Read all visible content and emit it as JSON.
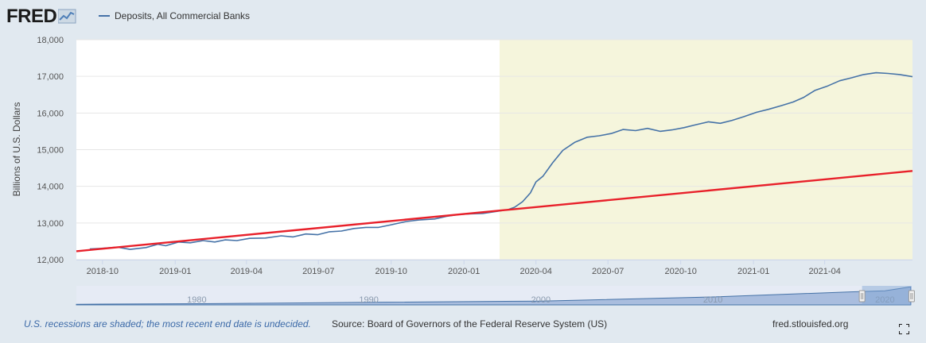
{
  "brand": "FRED",
  "legend": {
    "series_label": "Deposits, All Commercial Banks",
    "series_color": "#4572a7",
    "trend_color": "#e8202a"
  },
  "footer": {
    "recession_note": "U.S. recessions are shaded; the most recent end date is undecided.",
    "source": "Source: Board of Governors of the Federal Reserve System (US)",
    "site": "fred.stlouisfed.org"
  },
  "chart_data": {
    "type": "line",
    "ylabel": "Billions of U.S. Dollars",
    "ylim": [
      12000,
      18000
    ],
    "yticks": [
      12000,
      13000,
      14000,
      15000,
      16000,
      17000,
      18000
    ],
    "ytick_labels": [
      "12,000",
      "13,000",
      "14,000",
      "15,000",
      "16,000",
      "17,000",
      "18,000"
    ],
    "xlim": [
      "2018-08-29",
      "2021-07-21"
    ],
    "xticks": [
      {
        "date": "2018-10-01",
        "label": "2018-10"
      },
      {
        "date": "2019-01-01",
        "label": "2019-01"
      },
      {
        "date": "2019-04-01",
        "label": "2019-04"
      },
      {
        "date": "2019-07-01",
        "label": "2019-07"
      },
      {
        "date": "2019-10-01",
        "label": "2019-10"
      },
      {
        "date": "2020-01-01",
        "label": "2020-01"
      },
      {
        "date": "2020-04-01",
        "label": "2020-04"
      },
      {
        "date": "2020-07-01",
        "label": "2020-07"
      },
      {
        "date": "2020-10-01",
        "label": "2020-10"
      },
      {
        "date": "2021-01-01",
        "label": "2021-01"
      },
      {
        "date": "2021-04-01",
        "label": "2021-04"
      }
    ],
    "recession": {
      "start": "2020-02-15",
      "end": "2021-07-21",
      "color": "#f5f5dc"
    },
    "grid": "horizontal",
    "series": [
      {
        "name": "Deposits, All Commercial Banks",
        "color": "#4572a7",
        "points": [
          [
            "2018-09-15",
            12290
          ],
          [
            "2018-10-01",
            12310
          ],
          [
            "2018-10-20",
            12340
          ],
          [
            "2018-11-05",
            12280
          ],
          [
            "2018-11-25",
            12330
          ],
          [
            "2018-12-10",
            12420
          ],
          [
            "2018-12-20",
            12380
          ],
          [
            "2019-01-05",
            12480
          ],
          [
            "2019-01-20",
            12460
          ],
          [
            "2019-02-05",
            12520
          ],
          [
            "2019-02-20",
            12480
          ],
          [
            "2019-03-05",
            12540
          ],
          [
            "2019-03-20",
            12520
          ],
          [
            "2019-04-05",
            12580
          ],
          [
            "2019-04-25",
            12590
          ],
          [
            "2019-05-15",
            12650
          ],
          [
            "2019-05-30",
            12620
          ],
          [
            "2019-06-15",
            12700
          ],
          [
            "2019-06-30",
            12680
          ],
          [
            "2019-07-15",
            12760
          ],
          [
            "2019-07-30",
            12780
          ],
          [
            "2019-08-15",
            12850
          ],
          [
            "2019-08-30",
            12880
          ],
          [
            "2019-09-15",
            12880
          ],
          [
            "2019-10-01",
            12950
          ],
          [
            "2019-10-20",
            13040
          ],
          [
            "2019-11-05",
            13080
          ],
          [
            "2019-11-25",
            13110
          ],
          [
            "2019-12-10",
            13180
          ],
          [
            "2019-12-25",
            13230
          ],
          [
            "2020-01-10",
            13250
          ],
          [
            "2020-01-25",
            13260
          ],
          [
            "2020-02-10",
            13310
          ],
          [
            "2020-02-25",
            13360
          ],
          [
            "2020-03-05",
            13430
          ],
          [
            "2020-03-15",
            13580
          ],
          [
            "2020-03-25",
            13820
          ],
          [
            "2020-04-01",
            14120
          ],
          [
            "2020-04-10",
            14280
          ],
          [
            "2020-04-22",
            14640
          ],
          [
            "2020-05-05",
            14980
          ],
          [
            "2020-05-20",
            15200
          ],
          [
            "2020-06-05",
            15340
          ],
          [
            "2020-06-20",
            15380
          ],
          [
            "2020-07-05",
            15440
          ],
          [
            "2020-07-20",
            15550
          ],
          [
            "2020-08-05",
            15520
          ],
          [
            "2020-08-20",
            15580
          ],
          [
            "2020-09-05",
            15500
          ],
          [
            "2020-09-20",
            15540
          ],
          [
            "2020-10-05",
            15600
          ],
          [
            "2020-10-20",
            15680
          ],
          [
            "2020-11-05",
            15760
          ],
          [
            "2020-11-20",
            15720
          ],
          [
            "2020-12-05",
            15800
          ],
          [
            "2020-12-20",
            15900
          ],
          [
            "2021-01-05",
            16020
          ],
          [
            "2021-01-20",
            16100
          ],
          [
            "2021-02-05",
            16200
          ],
          [
            "2021-02-20",
            16300
          ],
          [
            "2021-03-05",
            16420
          ],
          [
            "2021-03-20",
            16620
          ],
          [
            "2021-04-05",
            16740
          ],
          [
            "2021-04-20",
            16880
          ],
          [
            "2021-05-05",
            16960
          ],
          [
            "2021-05-20",
            17050
          ],
          [
            "2021-06-05",
            17100
          ],
          [
            "2021-06-20",
            17080
          ],
          [
            "2021-07-05",
            17050
          ],
          [
            "2021-07-21",
            16990
          ]
        ]
      },
      {
        "name": "",
        "color": "#e8202a",
        "points": [
          [
            "2018-08-29",
            12230
          ],
          [
            "2021-07-21",
            14420
          ]
        ]
      }
    ],
    "navigator": {
      "tick_labels": [
        "1980",
        "1990",
        "2000",
        "2010",
        "2020"
      ],
      "tick_years": [
        1980,
        1990,
        2000,
        2010,
        2020
      ],
      "range_years": [
        1973,
        2021.6
      ],
      "values": [
        [
          1973,
          600
        ],
        [
          1980,
          1100
        ],
        [
          1990,
          2400
        ],
        [
          2000,
          3600
        ],
        [
          2010,
          7500
        ],
        [
          2018,
          12300
        ],
        [
          2020,
          13300
        ],
        [
          2021.5,
          17000
        ]
      ],
      "selected_years": [
        2018.67,
        2021.55
      ]
    }
  }
}
